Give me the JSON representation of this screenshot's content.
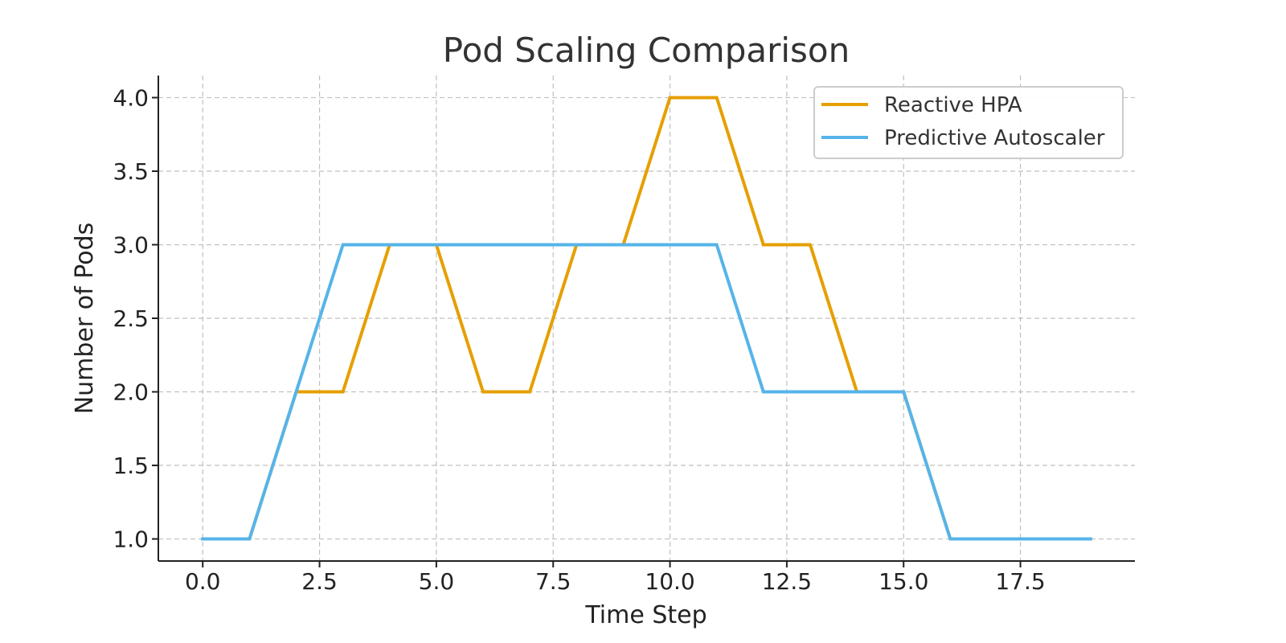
{
  "chart_data": {
    "type": "line",
    "title": "Pod Scaling Comparison",
    "xlabel": "Time Step",
    "ylabel": "Number of Pods",
    "x": [
      0,
      1,
      2,
      3,
      4,
      5,
      6,
      7,
      8,
      9,
      10,
      11,
      12,
      13,
      14,
      15,
      16,
      17,
      18,
      19
    ],
    "series": [
      {
        "name": "Reactive HPA",
        "color": "#E69F00",
        "values": [
          1,
          1,
          2,
          2,
          3,
          3,
          2,
          2,
          3,
          3,
          4,
          4,
          3,
          3,
          2,
          2,
          1,
          1,
          1,
          1
        ]
      },
      {
        "name": "Predictive Autoscaler",
        "color": "#56B4E9",
        "values": [
          1,
          1,
          2,
          3,
          3,
          3,
          3,
          3,
          3,
          3,
          3,
          3,
          2,
          2,
          2,
          2,
          1,
          1,
          1,
          1
        ]
      }
    ],
    "xlim": [
      -0.95,
      19.95
    ],
    "ylim": [
      0.85,
      4.15
    ],
    "xticks": [
      0.0,
      2.5,
      5.0,
      7.5,
      10.0,
      12.5,
      15.0,
      17.5
    ],
    "xtick_labels": [
      "0.0",
      "2.5",
      "5.0",
      "7.5",
      "10.0",
      "12.5",
      "15.0",
      "17.5"
    ],
    "yticks": [
      1.0,
      1.5,
      2.0,
      2.5,
      3.0,
      3.5,
      4.0
    ],
    "ytick_labels": [
      "1.0",
      "1.5",
      "2.0",
      "2.5",
      "3.0",
      "3.5",
      "4.0"
    ],
    "grid": true,
    "legend_position": "top-right"
  }
}
